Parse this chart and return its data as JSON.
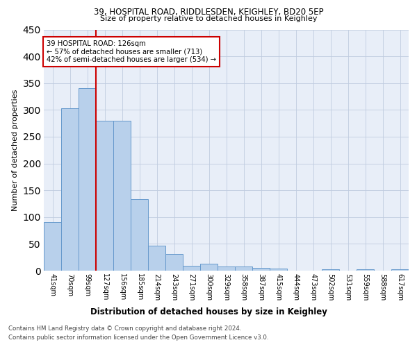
{
  "title1": "39, HOSPITAL ROAD, RIDDLESDEN, KEIGHLEY, BD20 5EP",
  "title2": "Size of property relative to detached houses in Keighley",
  "xlabel": "Distribution of detached houses by size in Keighley",
  "ylabel": "Number of detached properties",
  "categories": [
    "41sqm",
    "70sqm",
    "99sqm",
    "127sqm",
    "156sqm",
    "185sqm",
    "214sqm",
    "243sqm",
    "271sqm",
    "300sqm",
    "329sqm",
    "358sqm",
    "387sqm",
    "415sqm",
    "444sqm",
    "473sqm",
    "502sqm",
    "531sqm",
    "559sqm",
    "588sqm",
    "617sqm"
  ],
  "values": [
    91,
    303,
    341,
    280,
    280,
    133,
    47,
    31,
    9,
    13,
    8,
    8,
    5,
    4,
    0,
    0,
    3,
    0,
    3,
    0,
    3
  ],
  "bar_color": "#b8d0eb",
  "bar_edge_color": "#6699cc",
  "annotation_text": "39 HOSPITAL ROAD: 126sqm\n← 57% of detached houses are smaller (713)\n42% of semi-detached houses are larger (534) →",
  "annotation_box_color": "#ffffff",
  "annotation_box_edge": "#cc0000",
  "property_line_color": "#cc0000",
  "property_line_index": 3,
  "ylim": [
    0,
    450
  ],
  "yticks": [
    0,
    50,
    100,
    150,
    200,
    250,
    300,
    350,
    400,
    450
  ],
  "footer1": "Contains HM Land Registry data © Crown copyright and database right 2024.",
  "footer2": "Contains public sector information licensed under the Open Government Licence v3.0.",
  "plot_bg_color": "#e8eef8"
}
